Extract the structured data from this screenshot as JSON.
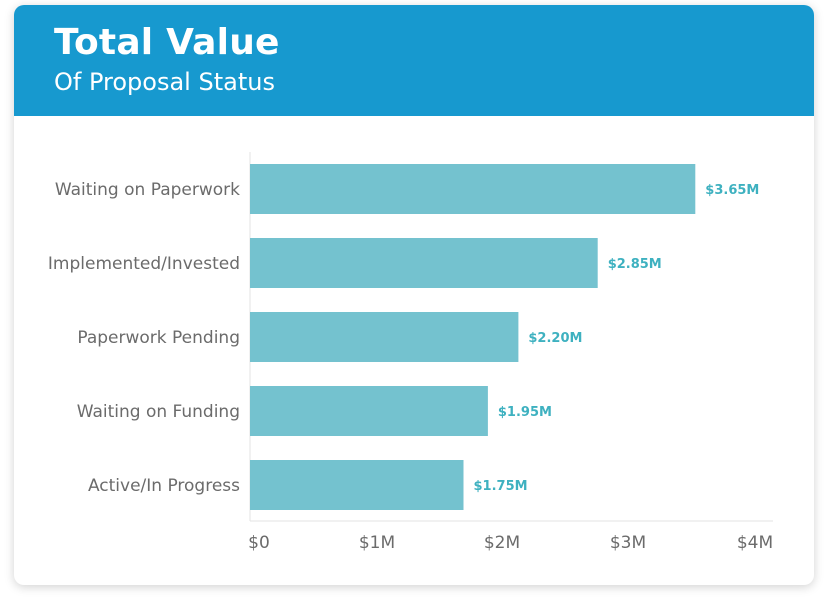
{
  "header": {
    "title": "Total Value",
    "subtitle": "Of Proposal Status"
  },
  "colors": {
    "header_bg": "#1799cf",
    "bar": "#74c2cf",
    "value_label": "#3eb1c0",
    "axis_text": "#6b6b6b"
  },
  "chart_data": {
    "type": "bar",
    "orientation": "horizontal",
    "categories": [
      "Waiting on Paperwork",
      "Implemented/Invested",
      "Paperwork Pending",
      "Waiting on Funding",
      "Active/In Progress"
    ],
    "values": [
      3.65,
      2.85,
      2.2,
      1.95,
      1.75
    ],
    "value_labels": [
      "$3.65M",
      "$2.85M",
      "$2.20M",
      "$1.95M",
      "$1.75M"
    ],
    "x_ticks": [
      0,
      1,
      2,
      3,
      4
    ],
    "x_tick_labels": [
      "$0",
      "$1M",
      "$2M",
      "$3M",
      "$4M"
    ],
    "xlim": [
      0,
      4
    ],
    "grid": false,
    "legend": "none"
  }
}
